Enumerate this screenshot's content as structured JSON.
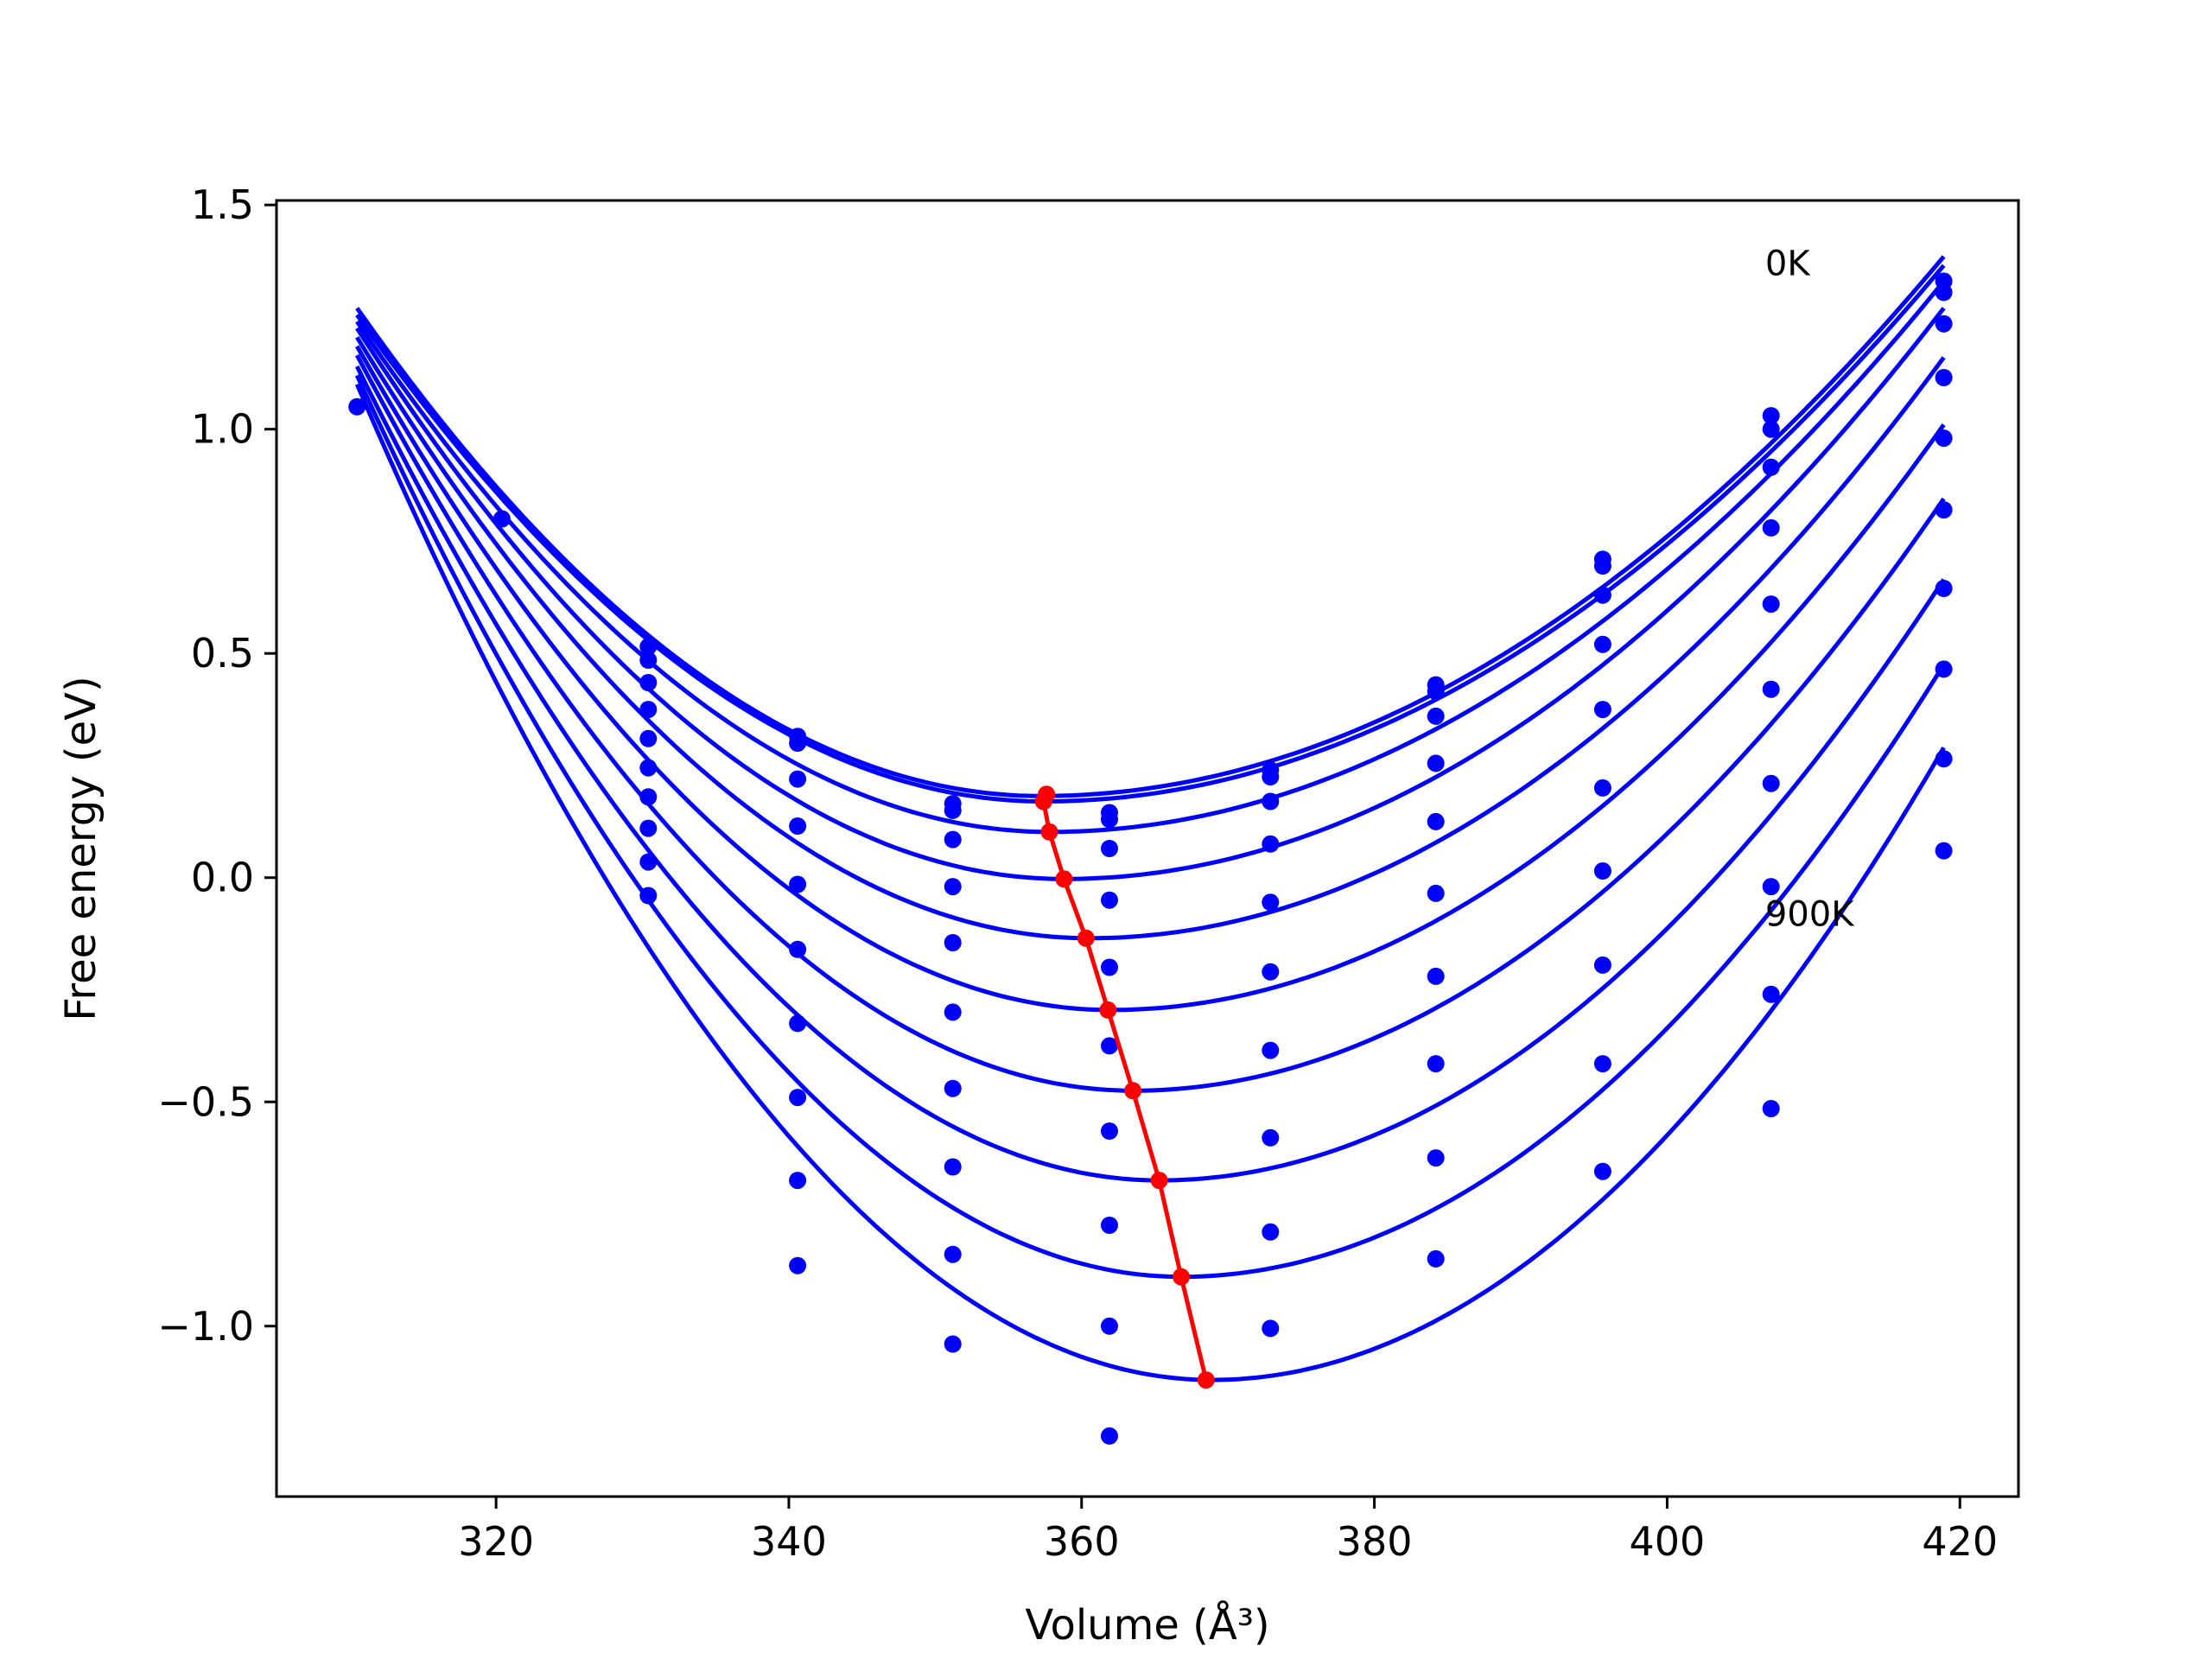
{
  "chart_data": {
    "type": "line",
    "xlabel": "Volume (Å³)",
    "ylabel": "Free energy (eV)",
    "xlim": [
      305,
      424
    ],
    "ylim": [
      -1.38,
      1.51
    ],
    "xticks": [
      320,
      340,
      360,
      380,
      400,
      420
    ],
    "yticks": [
      1.5,
      1.0,
      0.5,
      0.0,
      -0.5,
      -1.0
    ],
    "xtick_labels": [
      "320",
      "340",
      "360",
      "380",
      "400",
      "420"
    ],
    "ytick_labels": [
      "1.5",
      "1.0",
      "0.5",
      "0.0",
      "−0.5",
      "−1.0"
    ],
    "grid": false,
    "annotations": [
      {
        "text": "0K",
        "x": 406.7,
        "y": 1.37
      },
      {
        "text": "900K",
        "x": 406.7,
        "y": -0.08
      }
    ],
    "volumes": [
      310.5,
      320.4,
      330.4,
      340.6,
      351.2,
      361.9,
      372.9,
      384.2,
      395.6,
      407.1,
      418.9
    ],
    "fit_range": [
      310.5,
      418.9
    ],
    "curves": [
      {
        "v0": 357.2,
        "f0": 0.182,
        "left": 1.27,
        "right": 1.385
      },
      {
        "v0": 357.4,
        "f0": 0.17,
        "left": 1.255,
        "right": 1.365
      },
      {
        "v0": 357.8,
        "f0": 0.102,
        "left": 1.24,
        "right": 1.33
      },
      {
        "v0": 358.8,
        "f0": -0.003,
        "left": 1.225,
        "right": 1.27
      },
      {
        "v0": 360.5,
        "f0": -0.135,
        "left": 1.205,
        "right": 1.16
      },
      {
        "v0": 362.0,
        "f0": -0.295,
        "left": 1.185,
        "right": 1.01
      },
      {
        "v0": 363.5,
        "f0": -0.475,
        "left": 1.165,
        "right": 0.845
      },
      {
        "v0": 365.3,
        "f0": -0.675,
        "left": 1.14,
        "right": 0.665
      },
      {
        "v0": 366.8,
        "f0": -0.89,
        "left": 1.12,
        "right": 0.475
      },
      {
        "v0": 368.9,
        "f0": -1.12,
        "left": 1.1,
        "right": 0.29
      }
    ],
    "scatter_points": [
      [
        310.5,
        1.05
      ],
      [
        320.4,
        0.8
      ],
      [
        330.4,
        0.515
      ],
      [
        330.4,
        0.485
      ],
      [
        330.4,
        0.435
      ],
      [
        330.4,
        0.375
      ],
      [
        330.4,
        0.31
      ],
      [
        330.4,
        0.245
      ],
      [
        330.4,
        0.18
      ],
      [
        330.4,
        0.11
      ],
      [
        330.4,
        0.035
      ],
      [
        330.4,
        -0.04
      ],
      [
        340.6,
        0.315
      ],
      [
        340.6,
        0.3
      ],
      [
        340.6,
        0.22
      ],
      [
        340.6,
        0.115
      ],
      [
        340.6,
        -0.015
      ],
      [
        340.6,
        -0.16
      ],
      [
        340.6,
        -0.325
      ],
      [
        340.6,
        -0.49
      ],
      [
        340.6,
        -0.675
      ],
      [
        340.6,
        -0.865
      ],
      [
        351.2,
        0.165
      ],
      [
        351.2,
        0.15
      ],
      [
        351.2,
        0.085
      ],
      [
        351.2,
        -0.02
      ],
      [
        351.2,
        -0.145
      ],
      [
        351.2,
        -0.3
      ],
      [
        351.2,
        -0.47
      ],
      [
        351.2,
        -0.645
      ],
      [
        351.2,
        -0.84
      ],
      [
        351.2,
        -1.04
      ],
      [
        361.9,
        0.145
      ],
      [
        361.9,
        0.13
      ],
      [
        361.9,
        0.065
      ],
      [
        361.9,
        -0.05
      ],
      [
        361.9,
        -0.2
      ],
      [
        361.9,
        -0.375
      ],
      [
        361.9,
        -0.565
      ],
      [
        361.9,
        -0.775
      ],
      [
        361.9,
        -1.0
      ],
      [
        361.9,
        -1.245
      ],
      [
        372.9,
        0.24
      ],
      [
        372.9,
        0.225
      ],
      [
        372.9,
        0.17
      ],
      [
        372.9,
        0.075
      ],
      [
        372.9,
        -0.055
      ],
      [
        372.9,
        -0.21
      ],
      [
        372.9,
        -0.385
      ],
      [
        372.9,
        -0.58
      ],
      [
        372.9,
        -0.79
      ],
      [
        372.9,
        -1.005
      ],
      [
        384.2,
        0.43
      ],
      [
        384.2,
        0.415
      ],
      [
        384.2,
        0.36
      ],
      [
        384.2,
        0.255
      ],
      [
        384.2,
        0.125
      ],
      [
        384.2,
        -0.035
      ],
      [
        384.2,
        -0.22
      ],
      [
        384.2,
        -0.415
      ],
      [
        384.2,
        -0.625
      ],
      [
        384.2,
        -0.85
      ],
      [
        395.6,
        0.71
      ],
      [
        395.6,
        0.695
      ],
      [
        395.6,
        0.63
      ],
      [
        395.6,
        0.52
      ],
      [
        395.6,
        0.375
      ],
      [
        395.6,
        0.2
      ],
      [
        395.6,
        0.015
      ],
      [
        395.6,
        -0.195
      ],
      [
        395.6,
        -0.415
      ],
      [
        395.6,
        -0.655
      ],
      [
        407.1,
        1.03
      ],
      [
        407.1,
        1.0
      ],
      [
        407.1,
        0.915
      ],
      [
        407.1,
        0.78
      ],
      [
        407.1,
        0.61
      ],
      [
        407.1,
        0.42
      ],
      [
        407.1,
        0.21
      ],
      [
        407.1,
        -0.02
      ],
      [
        407.1,
        -0.26
      ],
      [
        407.1,
        -0.515
      ],
      [
        418.9,
        1.33
      ],
      [
        418.9,
        1.305
      ],
      [
        418.9,
        1.235
      ],
      [
        418.9,
        1.115
      ],
      [
        418.9,
        0.98
      ],
      [
        418.9,
        0.82
      ],
      [
        418.9,
        0.645
      ],
      [
        418.9,
        0.465
      ],
      [
        418.9,
        0.265
      ],
      [
        418.9,
        0.06
      ]
    ],
    "minima_line": [
      [
        357.6,
        0.186
      ],
      [
        357.4,
        0.17
      ],
      [
        357.8,
        0.102
      ],
      [
        358.8,
        -0.003
      ],
      [
        360.3,
        -0.135
      ],
      [
        361.8,
        -0.295
      ],
      [
        363.5,
        -0.475
      ],
      [
        365.3,
        -0.675
      ],
      [
        366.8,
        -0.89
      ],
      [
        368.5,
        -1.12
      ]
    ],
    "colors": {
      "curves": "#0000ff",
      "points": "#0000ff",
      "minima": "#ff0000"
    }
  }
}
